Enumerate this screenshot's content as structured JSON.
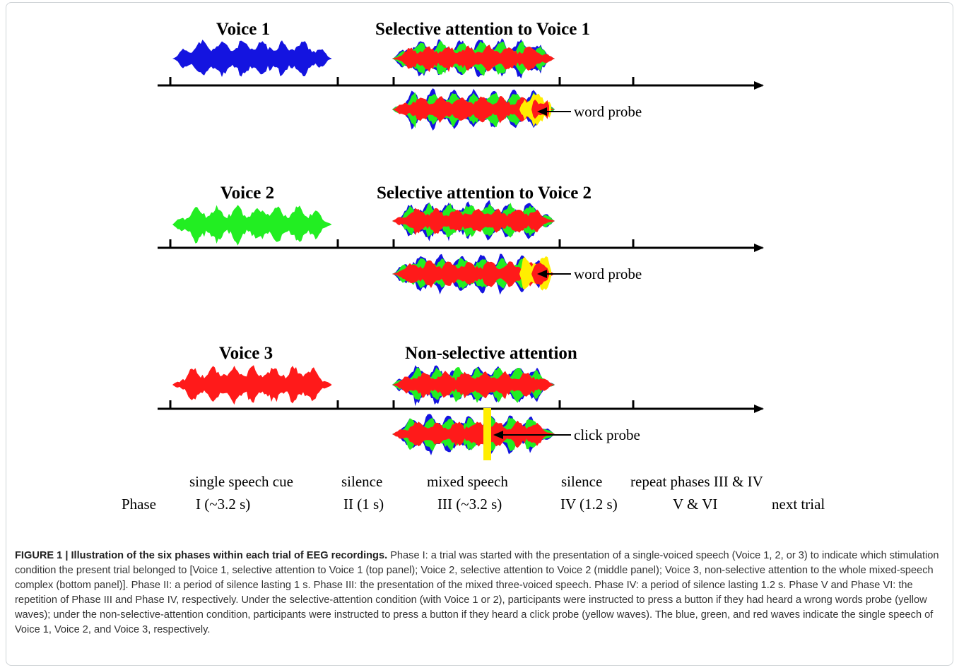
{
  "figure": {
    "panels": [
      {
        "voice_label": "Voice 1",
        "attention_title": "Selective attention to Voice 1",
        "cue_color": "#1414e0",
        "probe_label": "word probe",
        "probe_type": "word"
      },
      {
        "voice_label": "Voice 2",
        "attention_title": "Selective attention to Voice 2",
        "cue_color": "#22ee22",
        "probe_label": "word probe",
        "probe_type": "word"
      },
      {
        "voice_label": "Voice 3",
        "attention_title": "Non-selective attention",
        "cue_color": "#ff1a1a",
        "probe_label": "click probe",
        "probe_type": "click"
      }
    ],
    "wave_colors": {
      "voice1": "#1414e0",
      "voice2": "#22ee22",
      "voice3": "#ff1a1a",
      "probe": "#ffee00"
    },
    "phase_row": {
      "label": "Phase",
      "phases": [
        {
          "name": "single speech cue",
          "value": "I  (~3.2 s)"
        },
        {
          "name": "silence",
          "value": "II  (1 s)"
        },
        {
          "name": "mixed speech",
          "value": "III  (~3.2 s)"
        },
        {
          "name": "silence",
          "value": "IV  (1.2 s)"
        },
        {
          "name": "repeat phases III  &  IV",
          "value": "V  &  VI"
        },
        {
          "name": "",
          "value": "next trial"
        }
      ]
    }
  },
  "caption": {
    "bold": "FIGURE 1 | Illustration of the six phases within each trial of EEG recordings.",
    "text": " Phase I: a trial was started with the presentation of a single-voiced speech (Voice 1, 2, or 3) to indicate which stimulation condition the present trial belonged to [Voice 1, selective attention to Voice 1 (top panel); Voice 2, selective attention to Voice 2 (middle panel); Voice 3, non-selective attention to the whole mixed-speech complex (bottom panel)]. Phase II: a period of silence lasting 1 s. Phase III: the presentation of the mixed three-voiced speech. Phase IV: a period of silence lasting 1.2 s. Phase V and Phase VI: the repetition of Phase III and Phase IV, respectively. Under the selective-attention condition (with Voice 1 or 2), participants were instructed to press a button if they had heard a wrong words probe (yellow waves); under the non-selective-attention condition, participants were instructed to press a button if they heard a click probe (yellow waves). The blue, green, and red waves indicate the single speech of Voice 1, Voice 2, and Voice 3, respectively."
  }
}
